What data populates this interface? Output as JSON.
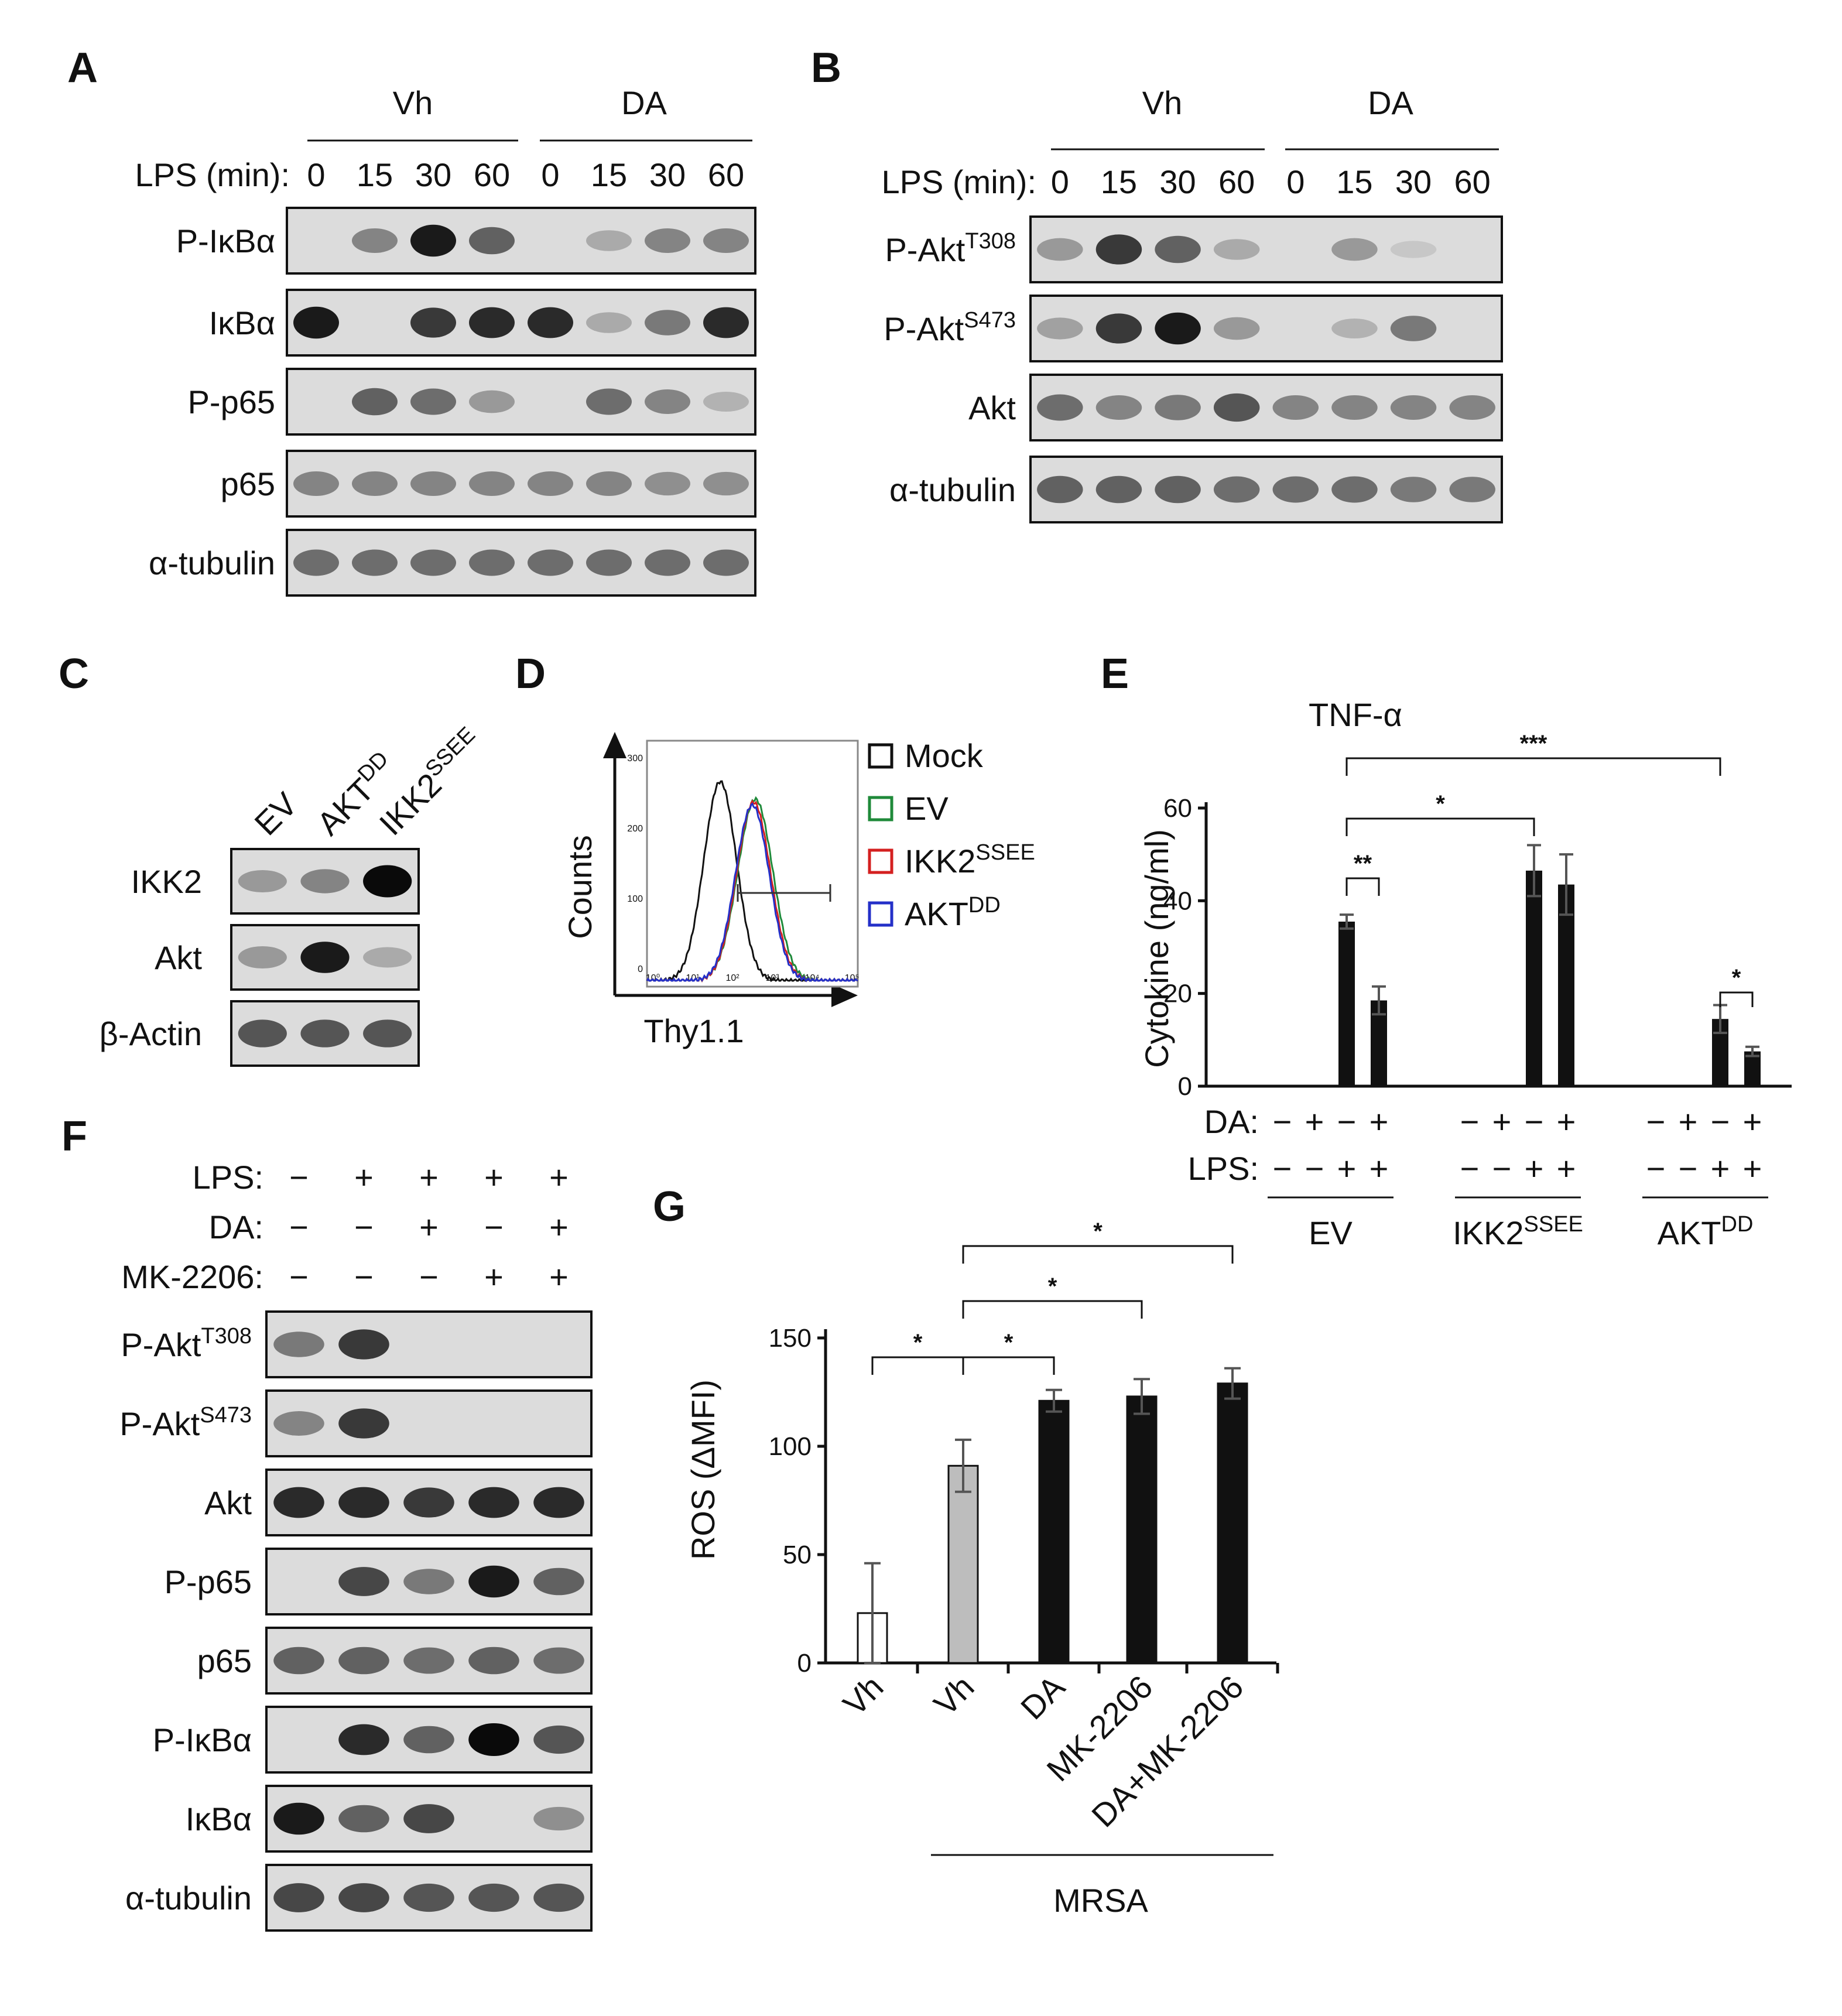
{
  "panels": [
    "A",
    "B",
    "C",
    "D",
    "E",
    "F",
    "G"
  ],
  "panel_a": {
    "groups": [
      "Vh",
      "DA"
    ],
    "lps_label": "LPS (min):",
    "timepoints": [
      "0",
      "15",
      "30",
      "60",
      "0",
      "15",
      "30",
      "60"
    ],
    "rows": [
      {
        "label": "P-IκBα",
        "levels": [
          0,
          0.55,
          0.95,
          0.7,
          0,
          0.35,
          0.55,
          0.55
        ]
      },
      {
        "label": "IκBα",
        "levels": [
          0.95,
          0,
          0.85,
          0.9,
          0.9,
          0.35,
          0.6,
          0.9
        ]
      },
      {
        "label": "P-p65",
        "levels": [
          0,
          0.7,
          0.65,
          0.45,
          0,
          0.65,
          0.55,
          0.3
        ]
      },
      {
        "label": "p65",
        "levels": [
          0.55,
          0.55,
          0.55,
          0.55,
          0.55,
          0.55,
          0.5,
          0.5
        ]
      },
      {
        "label": "α-tubulin",
        "levels": [
          0.65,
          0.65,
          0.65,
          0.65,
          0.65,
          0.65,
          0.65,
          0.65
        ]
      }
    ]
  },
  "panel_b": {
    "groups": [
      "Vh",
      "DA"
    ],
    "lps_label": "LPS (min):",
    "timepoints": [
      "0",
      "15",
      "30",
      "60",
      "0",
      "15",
      "30",
      "60"
    ],
    "rows": [
      {
        "label": "P-Akt",
        "sup": "T308",
        "levels": [
          0.45,
          0.85,
          0.7,
          0.35,
          0,
          0.45,
          0.15,
          0
        ]
      },
      {
        "label": "P-Akt",
        "sup": "S473",
        "levels": [
          0.4,
          0.85,
          0.95,
          0.45,
          0,
          0.3,
          0.6,
          0
        ]
      },
      {
        "label": "Akt",
        "levels": [
          0.65,
          0.55,
          0.6,
          0.75,
          0.55,
          0.55,
          0.55,
          0.55
        ]
      },
      {
        "label": "α-tubulin",
        "levels": [
          0.7,
          0.7,
          0.7,
          0.65,
          0.65,
          0.65,
          0.6,
          0.6
        ]
      }
    ]
  },
  "panel_c": {
    "lanes": [
      {
        "text": "EV",
        "sup": ""
      },
      {
        "text": "AKT",
        "sup": "DD"
      },
      {
        "text": "IKK2",
        "sup": "SSEE"
      }
    ],
    "rows": [
      {
        "label": "IKK2",
        "levels": [
          0.45,
          0.55,
          1.0
        ]
      },
      {
        "label": "Akt",
        "levels": [
          0.45,
          0.95,
          0.35
        ]
      },
      {
        "label": "β-Actin",
        "levels": [
          0.75,
          0.75,
          0.75
        ]
      }
    ]
  },
  "panel_d": {
    "ylabel": "Counts",
    "xlabel": "Thy1.1",
    "y_ticks": [
      "300",
      "200",
      "100",
      "0"
    ],
    "x_ticks": [
      "10⁰",
      "10¹",
      "10²",
      "10³",
      "10⁴",
      "10⁵"
    ],
    "legend": [
      {
        "text": "Mock",
        "sup": "",
        "color": "#111111"
      },
      {
        "text": "EV",
        "sup": "",
        "color": "#1f8a3a"
      },
      {
        "text": "IKK2",
        "sup": "SSEE",
        "color": "#d42020"
      },
      {
        "text": "AKT",
        "sup": "DD",
        "color": "#2430c8"
      }
    ]
  },
  "panel_e": {
    "title": "TNF-α",
    "ylabel": "Cytokine (ng/ml)",
    "row_labels": [
      "DA:",
      "LPS:"
    ],
    "da_signs": [
      "−",
      "+",
      "−",
      "+",
      "−",
      "+",
      "−",
      "+",
      "−",
      "+",
      "−",
      "+"
    ],
    "lps_signs": [
      "−",
      "−",
      "+",
      "+",
      "−",
      "−",
      "+",
      "+",
      "−",
      "−",
      "+",
      "+"
    ],
    "groups": [
      {
        "text": "EV",
        "sup": ""
      },
      {
        "text": "IKK2",
        "sup": "SSEE"
      },
      {
        "text": "AKT",
        "sup": "DD"
      }
    ],
    "significance": [
      "**",
      "*",
      "***",
      "*"
    ]
  },
  "panel_f": {
    "condition_labels": [
      "LPS:",
      "DA:",
      "MK-2206:"
    ],
    "conditions": [
      [
        "−",
        "+",
        "+",
        "+",
        "+"
      ],
      [
        "−",
        "−",
        "+",
        "−",
        "+"
      ],
      [
        "−",
        "−",
        "−",
        "+",
        "+"
      ]
    ],
    "rows": [
      {
        "label": "P-Akt",
        "sup": "T308",
        "levels": [
          0.6,
          0.85,
          0,
          0,
          0
        ]
      },
      {
        "label": "P-Akt",
        "sup": "S473",
        "levels": [
          0.55,
          0.85,
          0,
          0,
          0
        ]
      },
      {
        "label": "Akt",
        "levels": [
          0.9,
          0.9,
          0.85,
          0.9,
          0.9
        ]
      },
      {
        "label": "P-p65",
        "levels": [
          0,
          0.8,
          0.6,
          0.95,
          0.7
        ]
      },
      {
        "label": "p65",
        "levels": [
          0.7,
          0.7,
          0.65,
          0.7,
          0.65
        ]
      },
      {
        "label": "P-IκBα",
        "levels": [
          0,
          0.9,
          0.7,
          1.0,
          0.75
        ]
      },
      {
        "label": "IκBα",
        "levels": [
          0.95,
          0.7,
          0.8,
          0,
          0.5
        ]
      },
      {
        "label": "α-tubulin",
        "levels": [
          0.8,
          0.8,
          0.75,
          0.75,
          0.75
        ]
      }
    ]
  },
  "panel_g": {
    "ylabel": "ROS (ΔMFI)",
    "group_label": "MRSA",
    "significance": [
      "*",
      "*",
      "*",
      "*"
    ]
  },
  "chart_data": [
    {
      "type": "bar",
      "title": "TNF-α",
      "ylabel": "Cytokine (ng/ml)",
      "ylim": [
        0,
        60
      ],
      "yticks": [
        0,
        20,
        40,
        60
      ],
      "categories": [
        "EV",
        "EV",
        "EV",
        "EV",
        "IKK2SSEE",
        "IKK2SSEE",
        "IKK2SSEE",
        "IKK2SSEE",
        "AKTDD",
        "AKTDD",
        "AKTDD",
        "AKTDD"
      ],
      "series": [
        {
          "values": [
            0,
            0,
            35.5,
            18.5,
            0,
            0,
            46.5,
            43.5,
            0,
            0,
            14.5,
            7.5
          ],
          "errors": [
            0,
            0,
            1.5,
            3,
            0,
            0,
            5.5,
            6.5,
            0,
            0,
            3,
            1
          ]
        }
      ],
      "color": "#111111",
      "grid": false
    },
    {
      "type": "bar",
      "ylabel": "ROS (ΔMFI)",
      "ylim": [
        0,
        150
      ],
      "yticks": [
        0,
        50,
        100,
        150
      ],
      "categories": [
        "Vh",
        "Vh",
        "DA",
        "MK-2206",
        "DA+MK-2206"
      ],
      "series": [
        {
          "values": [
            23,
            91,
            121,
            123,
            129
          ],
          "errors": [
            23,
            12,
            5,
            8,
            7
          ]
        }
      ],
      "colors": [
        "#ffffff",
        "#bdbdbd",
        "#111111",
        "#111111",
        "#111111"
      ],
      "grid": false
    }
  ]
}
